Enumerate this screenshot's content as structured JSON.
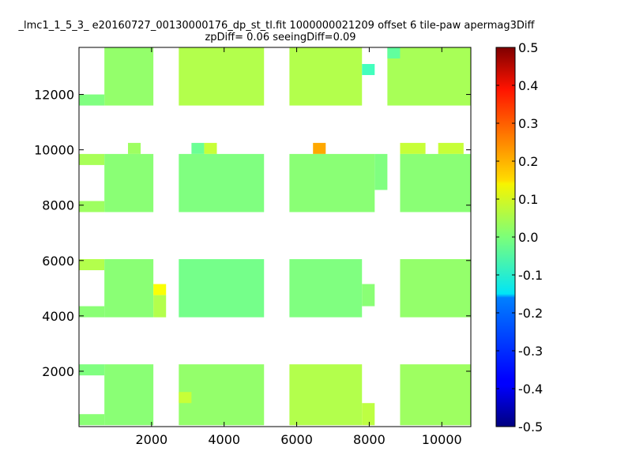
{
  "title_line1": "_lmc1_1_5_3_ e20160727_00130000176_dp_st_tl.fit 1000000021209 offset 6 tile-paw apermag3Diff",
  "title_line2": "zpDiff= 0.06 seeingDiff=0.09",
  "chart_data": {
    "type": "heatmap",
    "title": "_lmc1_1_5_3_ e20160727_00130000176_dp_st_tl.fit 1000000021209 offset 6 tile-paw apermag3Diff\nzpDiff= 0.06 seeingDiff=0.09",
    "xlabel": "",
    "ylabel": "",
    "xlim": [
      0,
      10800
    ],
    "ylim": [
      0,
      13700
    ],
    "xticks": [
      2000,
      4000,
      6000,
      8000,
      10000
    ],
    "yticks": [
      2000,
      4000,
      6000,
      8000,
      10000,
      12000
    ],
    "colorbar": {
      "colormap": "jet",
      "vmin": -0.5,
      "vmax": 0.5,
      "ticks": [
        "-0.5",
        "-0.4",
        "-0.3",
        "-0.2",
        "-0.1",
        "0.0",
        "0.1",
        "0.2",
        "0.3",
        "0.4",
        "0.5"
      ]
    },
    "cells": [
      {
        "x0": 700,
        "x1": 2050,
        "y0": 11600,
        "y1": 13700,
        "v": 0.02
      },
      {
        "x0": 0,
        "x1": 700,
        "y0": 11600,
        "y1": 12000,
        "v": 0.0
      },
      {
        "x0": 2750,
        "x1": 5100,
        "y0": 11600,
        "y1": 13700,
        "v": 0.05
      },
      {
        "x0": 5800,
        "x1": 7800,
        "y0": 11600,
        "y1": 13700,
        "v": 0.05
      },
      {
        "x0": 7800,
        "x1": 8150,
        "y0": 12700,
        "y1": 13100,
        "v": -0.06
      },
      {
        "x0": 8500,
        "x1": 10800,
        "y0": 11600,
        "y1": 13700,
        "v": 0.04
      },
      {
        "x0": 8500,
        "x1": 8850,
        "y0": 13300,
        "y1": 13700,
        "v": -0.03
      },
      {
        "x0": 1350,
        "x1": 1700,
        "y0": 9850,
        "y1": 10250,
        "v": 0.03
      },
      {
        "x0": 3100,
        "x1": 3450,
        "y0": 9850,
        "y1": 10250,
        "v": -0.02
      },
      {
        "x0": 3450,
        "x1": 3800,
        "y0": 9850,
        "y1": 10250,
        "v": 0.07
      },
      {
        "x0": 6450,
        "x1": 6800,
        "y0": 9850,
        "y1": 10250,
        "v": 0.21
      },
      {
        "x0": 8850,
        "x1": 9550,
        "y0": 9850,
        "y1": 10250,
        "v": 0.07
      },
      {
        "x0": 9900,
        "x1": 10600,
        "y0": 9850,
        "y1": 10250,
        "v": 0.07
      },
      {
        "x0": 0,
        "x1": 700,
        "y0": 9450,
        "y1": 9850,
        "v": 0.04
      },
      {
        "x0": 700,
        "x1": 2050,
        "y0": 7750,
        "y1": 9850,
        "v": 0.01
      },
      {
        "x0": 0,
        "x1": 700,
        "y0": 7750,
        "y1": 8150,
        "v": 0.03
      },
      {
        "x0": 2750,
        "x1": 5100,
        "y0": 7750,
        "y1": 9850,
        "v": 0.0
      },
      {
        "x0": 5800,
        "x1": 8150,
        "y0": 7750,
        "y1": 9850,
        "v": 0.01
      },
      {
        "x0": 8150,
        "x1": 8500,
        "y0": 8550,
        "y1": 9850,
        "v": 0.0
      },
      {
        "x0": 8850,
        "x1": 10800,
        "y0": 7750,
        "y1": 9850,
        "v": 0.01
      },
      {
        "x0": 0,
        "x1": 700,
        "y0": 5650,
        "y1": 6050,
        "v": 0.05
      },
      {
        "x0": 700,
        "x1": 2050,
        "y0": 3950,
        "y1": 6050,
        "v": 0.01
      },
      {
        "x0": 0,
        "x1": 700,
        "y0": 3950,
        "y1": 4350,
        "v": 0.01
      },
      {
        "x0": 2050,
        "x1": 2400,
        "y0": 4750,
        "y1": 5150,
        "v": 0.12
      },
      {
        "x0": 2050,
        "x1": 2400,
        "y0": 3950,
        "y1": 4750,
        "v": 0.05
      },
      {
        "x0": 2750,
        "x1": 5100,
        "y0": 3950,
        "y1": 6050,
        "v": -0.01
      },
      {
        "x0": 5800,
        "x1": 7800,
        "y0": 3950,
        "y1": 6050,
        "v": 0.0
      },
      {
        "x0": 7800,
        "x1": 8150,
        "y0": 4350,
        "y1": 5150,
        "v": 0.01
      },
      {
        "x0": 8850,
        "x1": 10800,
        "y0": 3950,
        "y1": 6050,
        "v": 0.02
      },
      {
        "x0": 0,
        "x1": 700,
        "y0": 1850,
        "y1": 2250,
        "v": 0.0
      },
      {
        "x0": 700,
        "x1": 2050,
        "y0": 50,
        "y1": 2250,
        "v": 0.01
      },
      {
        "x0": 0,
        "x1": 700,
        "y0": 50,
        "y1": 450,
        "v": 0.01
      },
      {
        "x0": 2750,
        "x1": 5100,
        "y0": 50,
        "y1": 2250,
        "v": 0.02
      },
      {
        "x0": 2750,
        "x1": 3100,
        "y0": 850,
        "y1": 1250,
        "v": 0.07
      },
      {
        "x0": 5800,
        "x1": 7800,
        "y0": 50,
        "y1": 2250,
        "v": 0.05
      },
      {
        "x0": 7800,
        "x1": 8150,
        "y0": 50,
        "y1": 850,
        "v": 0.06
      },
      {
        "x0": 8850,
        "x1": 10800,
        "y0": 50,
        "y1": 2250,
        "v": 0.03
      }
    ]
  }
}
